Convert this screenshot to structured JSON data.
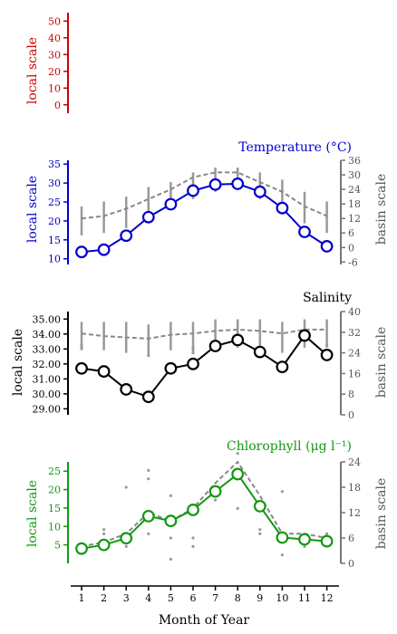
{
  "chart_data": [
    {
      "type": "line",
      "title": "",
      "color": "#cc0000",
      "ylabel_left": "local scale",
      "ylim_left": [
        -5,
        55
      ],
      "yticks_left": [
        0,
        10,
        20,
        30,
        40,
        50
      ],
      "x": [],
      "local": [],
      "basin": []
    },
    {
      "type": "line",
      "title": "Temperature (°C)",
      "color": "#0000cc",
      "ylabel_left": "local scale",
      "ylabel_right": "basin scale",
      "ylim_left": [
        8.5,
        36
      ],
      "yticks_left": [
        10,
        15,
        20,
        25,
        30,
        35
      ],
      "ylim_right": [
        -7,
        36
      ],
      "yticks_right": [
        -6,
        0,
        6,
        12,
        18,
        24,
        30,
        36
      ],
      "x": [
        1,
        2,
        3,
        4,
        5,
        6,
        7,
        8,
        9,
        10,
        11,
        12
      ],
      "local": [
        11.8,
        12.4,
        16.1,
        21.0,
        24.4,
        28.0,
        29.6,
        29.8,
        27.7,
        23.4,
        17.1,
        13.3
      ],
      "basin": [
        12,
        13,
        16,
        20,
        24,
        29,
        31,
        31,
        27,
        23,
        17,
        13
      ],
      "basin_range": [
        [
          5,
          17
        ],
        [
          6,
          19
        ],
        [
          8,
          21
        ],
        [
          11,
          25
        ],
        [
          16,
          27
        ],
        [
          20,
          31
        ],
        [
          23,
          33
        ],
        [
          24,
          33
        ],
        [
          20,
          31
        ],
        [
          15,
          28
        ],
        [
          10,
          23
        ],
        [
          6,
          19
        ]
      ],
      "basin_points": []
    },
    {
      "type": "line",
      "title": "Salinity",
      "color": "#000000",
      "ylabel_left": "local scale",
      "ylabel_right": "basin scale",
      "ylim_left": [
        28.6,
        35.5
      ],
      "yticks_left": [
        29.0,
        30.0,
        31.0,
        32.0,
        33.0,
        34.0,
        35.0
      ],
      "ytick_labels_left": [
        "29.00",
        "30.00",
        "31.00",
        "32.00",
        "33.00",
        "34.00",
        "35.00"
      ],
      "ylim_right": [
        0,
        40
      ],
      "yticks_right": [
        0,
        8,
        16,
        24,
        32,
        40
      ],
      "x": [
        1,
        2,
        3,
        4,
        5,
        6,
        7,
        8,
        9,
        10,
        11,
        12
      ],
      "local": [
        31.7,
        31.5,
        30.3,
        29.8,
        31.7,
        32.0,
        33.2,
        33.6,
        32.8,
        31.8,
        33.9,
        32.6
      ],
      "basin": [
        31.5,
        30.5,
        30,
        29.5,
        31,
        31.5,
        32.5,
        33,
        32.5,
        31.5,
        33,
        33
      ],
      "basin_range": [
        [
          25,
          36
        ],
        [
          25,
          36
        ],
        [
          24,
          36
        ],
        [
          23,
          35
        ],
        [
          25,
          36
        ],
        [
          25,
          36
        ],
        [
          26,
          37
        ],
        [
          26,
          37
        ],
        [
          25,
          37
        ],
        [
          24,
          36
        ],
        [
          26,
          37
        ],
        [
          26,
          37
        ]
      ],
      "basin_points": [
        [
          1,
          26
        ],
        [
          1,
          27
        ],
        [
          4,
          23
        ],
        [
          6,
          24
        ],
        [
          6,
          25
        ],
        [
          6,
          26
        ],
        [
          9,
          26
        ],
        [
          12,
          27
        ]
      ]
    },
    {
      "type": "line",
      "title": "Chlorophyll (μg l⁻¹)",
      "color": "#119911",
      "ylabel_left": "local scale",
      "ylabel_right": "basin scale",
      "ylim_left": [
        0,
        27.5
      ],
      "yticks_left": [
        5,
        10,
        15,
        20,
        25
      ],
      "ylim_right": [
        0,
        24
      ],
      "yticks_right": [
        0,
        6,
        12,
        18,
        24
      ],
      "x": [
        1,
        2,
        3,
        4,
        5,
        6,
        7,
        8,
        9,
        10,
        11,
        12
      ],
      "local": [
        4.0,
        5.0,
        6.8,
        12.8,
        11.5,
        14.5,
        19.5,
        24.2,
        15.5,
        7.0,
        6.5,
        6.0
      ],
      "basin": [
        4,
        5,
        7,
        12,
        10,
        13,
        19,
        24,
        16,
        7,
        7,
        6
      ],
      "basin_range": [],
      "basin_points": [
        [
          1,
          3
        ],
        [
          1,
          4
        ],
        [
          2,
          7
        ],
        [
          2,
          8
        ],
        [
          3,
          4
        ],
        [
          3,
          18
        ],
        [
          4,
          20
        ],
        [
          4,
          22
        ],
        [
          4,
          7
        ],
        [
          5,
          1
        ],
        [
          5,
          16
        ],
        [
          5,
          6
        ],
        [
          6,
          6
        ],
        [
          6,
          4
        ],
        [
          7,
          15
        ],
        [
          8,
          13
        ],
        [
          8,
          26
        ],
        [
          9,
          8
        ],
        [
          9,
          7
        ],
        [
          10,
          2
        ],
        [
          10,
          17
        ],
        [
          11,
          4
        ],
        [
          12,
          7
        ]
      ]
    }
  ],
  "xaxis": {
    "label": "Month of Year",
    "ticks": [
      1,
      2,
      3,
      4,
      5,
      6,
      7,
      8,
      9,
      10,
      11,
      12
    ]
  }
}
